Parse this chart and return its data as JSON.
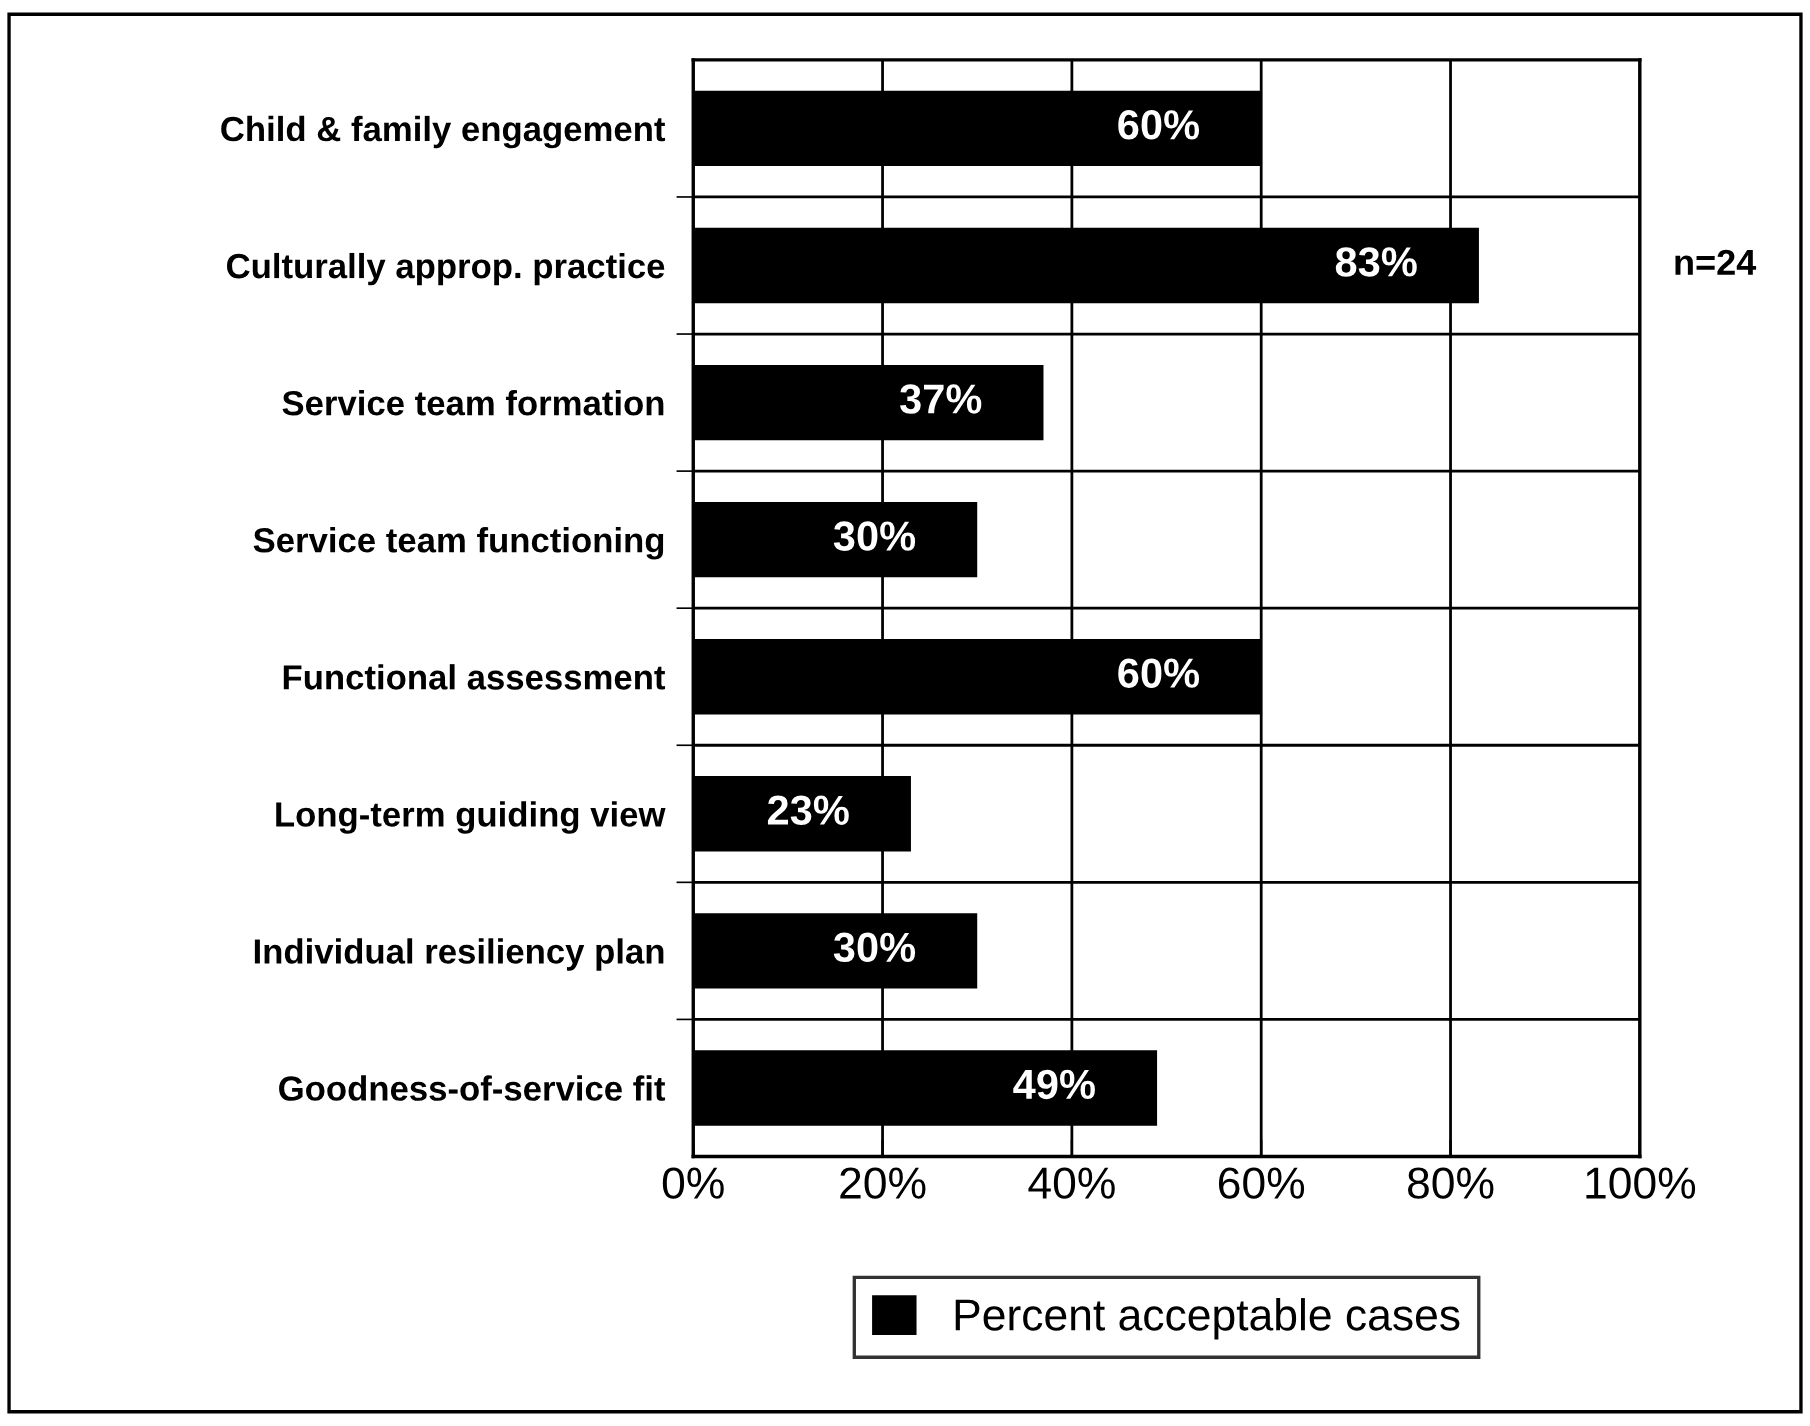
{
  "chart_data": {
    "type": "bar",
    "orientation": "horizontal",
    "categories": [
      "Child & family engagement",
      "Culturally approp. practice",
      "Service team formation",
      "Service team functioning",
      "Functional assessment",
      "Long-term guiding view",
      "Individual resiliency plan",
      "Goodness-of-service fit"
    ],
    "series": [
      {
        "name": "Percent acceptable cases",
        "color": "#000000",
        "values": [
          60,
          83,
          37,
          30,
          60,
          23,
          30,
          49
        ],
        "value_labels": [
          "60%",
          "83%",
          "37%",
          "30%",
          "60%",
          "23%",
          "30%",
          "49%"
        ]
      }
    ],
    "xlim": [
      0,
      100
    ],
    "xticks": [
      {
        "value": 0,
        "label": "0%"
      },
      {
        "value": 20,
        "label": "20%"
      },
      {
        "value": 40,
        "label": "40%"
      },
      {
        "value": 60,
        "label": "60%"
      },
      {
        "value": 80,
        "label": "80%"
      },
      {
        "value": 100,
        "label": "100%"
      }
    ],
    "grid": true,
    "legend": "bottom",
    "annotations": [
      "n=24"
    ]
  }
}
